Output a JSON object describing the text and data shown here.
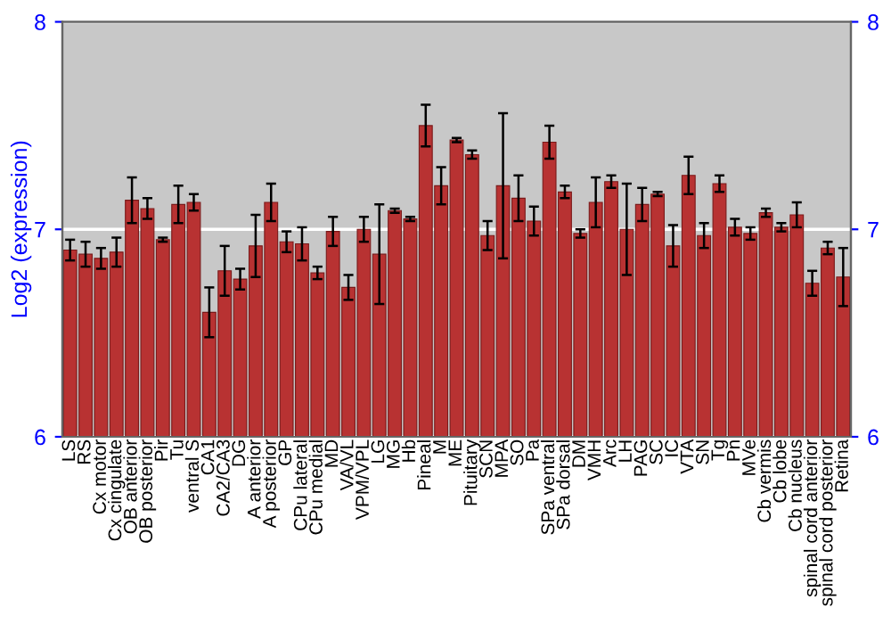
{
  "chart_data": {
    "type": "bar",
    "ylabel": "Log2 (expression)",
    "categories": [
      "LS",
      "RS",
      "Cx motor",
      "Cx cingulate",
      "OB anterior",
      "OB posterior",
      "Pir",
      "Tu",
      "ventral S",
      "CA1",
      "CA2/CA3",
      "DG",
      "A anterior",
      "A posterior",
      "GP",
      "CPu lateral",
      "CPu medial",
      "MD",
      "VA/VL",
      "VPM/VPL",
      "LG",
      "MG",
      "Hb",
      "Pineal",
      "M",
      "ME",
      "Pituitary",
      "SCN",
      "MPA",
      "SO",
      "Pa",
      "SPa ventral",
      "SPa dorsal",
      "DM",
      "VMH",
      "Arc",
      "LH",
      "PAG",
      "SC",
      "IC",
      "VTA",
      "SN",
      "Tg",
      "Pn",
      "MVe",
      "Cb vermis",
      "Cb lobe",
      "Cb nucleus",
      "spinal cord anterior",
      "spinal cord posterior",
      "Retina"
    ],
    "values": [
      6.9,
      6.88,
      6.86,
      6.89,
      7.14,
      7.1,
      6.95,
      7.12,
      7.13,
      6.6,
      6.8,
      6.76,
      6.92,
      7.13,
      6.94,
      6.93,
      6.79,
      6.99,
      6.72,
      7.0,
      6.88,
      7.09,
      7.05,
      7.5,
      7.21,
      7.43,
      7.36,
      6.97,
      7.21,
      7.15,
      7.04,
      7.42,
      7.18,
      6.98,
      7.13,
      7.23,
      7.0,
      7.12,
      7.17,
      6.92,
      7.26,
      6.97,
      7.22,
      7.01,
      6.98,
      7.08,
      7.01,
      7.07,
      6.74,
      6.91,
      6.77
    ],
    "errors": [
      0.05,
      0.06,
      0.05,
      0.07,
      0.11,
      0.05,
      0.01,
      0.09,
      0.04,
      0.12,
      0.12,
      0.05,
      0.15,
      0.09,
      0.05,
      0.08,
      0.03,
      0.07,
      0.06,
      0.06,
      0.24,
      0.01,
      0.01,
      0.1,
      0.09,
      0.01,
      0.02,
      0.07,
      0.35,
      0.11,
      0.07,
      0.08,
      0.03,
      0.02,
      0.12,
      0.03,
      0.22,
      0.08,
      0.01,
      0.1,
      0.09,
      0.06,
      0.04,
      0.04,
      0.03,
      0.02,
      0.02,
      0.06,
      0.06,
      0.03,
      0.14
    ],
    "color": "#b83232",
    "ylim": [
      6,
      8
    ],
    "yticks": [
      6,
      7,
      8
    ],
    "y2lim": [
      6,
      8
    ],
    "y2ticks": [
      6,
      7,
      8
    ],
    "grid": "y"
  }
}
